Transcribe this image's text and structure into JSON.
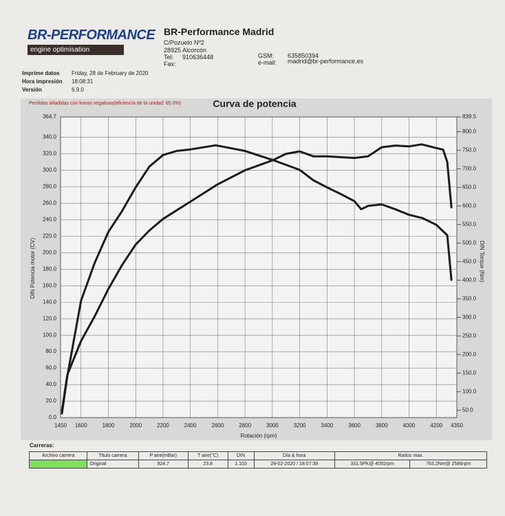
{
  "header": {
    "logo_title": "BR-PERFORMANCE",
    "logo_subtitle": "engine optimisation",
    "company": "BR-Performance Madrid",
    "address_1": "C/Pozuelo Nº2",
    "address_2": "28925 Alcorcón",
    "tel_label": "Tel:",
    "tel": "910636448",
    "fax_label": "Fax:",
    "gsm_label": "GSM:",
    "gsm": "635850394",
    "email_label": "e-mail:",
    "email": "madrid@br-performance.es"
  },
  "print_info": [
    {
      "label": "Imprime datos",
      "value": "Friday, 28 de February de 2020"
    },
    {
      "label": "Hora impresión",
      "value": "18:08:31"
    },
    {
      "label": "Versión",
      "value": "6.9.0"
    }
  ],
  "chart_data": {
    "type": "line",
    "title": "Curva de potencia",
    "subtitle": "Perdidas añadidas con lineas negativas(eficiencia de la unidad: 85.0%)",
    "x_label": "Rotación (rpm)",
    "y_label": "DIN Potencia motor (CV)",
    "y2_label": "DIN Torque (Nm)",
    "xlim": [
      1450,
      4350
    ],
    "xticks": [
      1450,
      1600,
      1800,
      2000,
      2200,
      2400,
      2600,
      2800,
      3000,
      3200,
      3400,
      3600,
      3800,
      4000,
      4200,
      4350
    ],
    "ylim": [
      0,
      364.7
    ],
    "yticks": [
      {
        "value": 0,
        "label": "0.0"
      },
      {
        "value": 20,
        "label": "20.0"
      },
      {
        "value": 40,
        "label": "40.0"
      },
      {
        "value": 60,
        "label": "60.0"
      },
      {
        "value": 80,
        "label": "80.0"
      },
      {
        "value": 100,
        "label": "100.0"
      },
      {
        "value": 120,
        "label": "120.0"
      },
      {
        "value": 140,
        "label": "140.0"
      },
      {
        "value": 160,
        "label": "160.0"
      },
      {
        "value": 180,
        "label": "180.0"
      },
      {
        "value": 200,
        "label": "200.0"
      },
      {
        "value": 220,
        "label": "220.0"
      },
      {
        "value": 240,
        "label": "240.0"
      },
      {
        "value": 260,
        "label": "260.0"
      },
      {
        "value": 280,
        "label": "280.0"
      },
      {
        "value": 300,
        "label": "300.0"
      },
      {
        "value": 320,
        "label": "320.0"
      },
      {
        "value": 340,
        "label": "340.0"
      },
      364.7
    ],
    "y2lim": [
      30,
      839.5
    ],
    "y2ticks": [
      {
        "value": 50,
        "label": "50.0"
      },
      {
        "value": 100,
        "label": "100.0"
      },
      {
        "value": 150,
        "label": "150.0"
      },
      {
        "value": 200,
        "label": "200.0"
      },
      {
        "value": 250,
        "label": "250.0"
      },
      {
        "value": 300,
        "label": "300.0"
      },
      {
        "value": 350,
        "label": "350.0"
      },
      {
        "value": 400,
        "label": "400.0"
      },
      {
        "value": 450,
        "label": "450.0"
      },
      {
        "value": 500,
        "label": "500.0"
      },
      {
        "value": 550,
        "label": "550.0"
      },
      {
        "value": 600,
        "label": "600.0"
      },
      {
        "value": 650,
        "label": "650.0"
      },
      {
        "value": 700,
        "label": "700.0"
      },
      {
        "value": 750,
        "label": "750.0"
      },
      {
        "value": 800,
        "label": "800.0"
      },
      839.5
    ],
    "grid": true,
    "series": [
      {
        "color": "#1c1c1c",
        "x": [
          1460,
          1500,
          1600,
          1700,
          1800,
          1900,
          2000,
          2100,
          2200,
          2400,
          2600,
          2800,
          3000,
          3100,
          3200,
          3300,
          3400,
          3600,
          3700,
          3800,
          3900,
          4000,
          4092,
          4200,
          4250,
          4280,
          4310
        ],
        "values": [
          8,
          52,
          93,
          123,
          156,
          185,
          210,
          227,
          241,
          262,
          283,
          300,
          312,
          320,
          323,
          317,
          317,
          315,
          317,
          328,
          330,
          329,
          331.5,
          327,
          325,
          310,
          255
        ]
      },
      {
        "color": "#1c1c1c",
        "axis": "y2",
        "x": [
          1460,
          1500,
          1600,
          1700,
          1800,
          1900,
          2000,
          2100,
          2200,
          2300,
          2400,
          2586,
          2800,
          3000,
          3200,
          3300,
          3400,
          3500,
          3600,
          3650,
          3700,
          3800,
          3900,
          4000,
          4100,
          4200,
          4280,
          4310
        ],
        "values": [
          41,
          142,
          345,
          447,
          530,
          586,
          650,
          706,
          737,
          748,
          752,
          763.2,
          748,
          724,
          697,
          669,
          650,
          632,
          613,
          591,
          600,
          604,
          591,
          576,
          567,
          549,
          521,
          401
        ]
      }
    ]
  },
  "runs": {
    "title": "Carreras:",
    "columns": [
      "Archivo carrera",
      "Titulo carrera",
      "P aire(mBar)",
      "T aire(°C)",
      "DIN",
      "Día & hora",
      "Ratios max."
    ],
    "rows": [
      {
        "run_title": "Original",
        "pressure": "924.7",
        "temperature": "23.8",
        "din": "1.103",
        "datetime": "28-02-2020 / 18:07:39",
        "max_power": "331.5PK@ 4092rpm",
        "max_torque": "763.2Nm@ 2586rpm"
      }
    ]
  }
}
